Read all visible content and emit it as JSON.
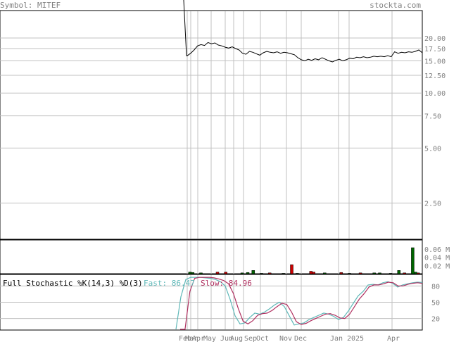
{
  "header": {
    "symbol_label": "Symbol: MITEF",
    "site": "stockta.com"
  },
  "colors": {
    "price_line": "#000000",
    "vol_up": "#006400",
    "vol_down": "#cc0000",
    "fast_line": "#5fb8b8",
    "slow_line": "#b03060",
    "grid": "#c0c0c0",
    "label": "#808080",
    "fast_label": "#5fb8b8",
    "slow_label": "#b03060"
  },
  "chart_data": [
    {
      "type": "line",
      "name": "price",
      "y_scale": "log",
      "ylim": [
        1.6,
        28
      ],
      "y_ticks": [
        "20.00",
        "17.50",
        "15.00",
        "12.50",
        "10.00",
        "7.50",
        "5.00",
        "2.50"
      ],
      "y_tick_values": [
        20,
        17.5,
        15,
        12.5,
        10,
        7.5,
        5,
        2.5
      ],
      "month_labels": [
        "Feb",
        "Mar",
        "Apr",
        "May",
        "Jun",
        "Aug",
        "Sep",
        "Oct",
        "Nov",
        "Dec",
        "Jan",
        "2025",
        "Apr"
      ],
      "values": [
        16.0,
        16.5,
        17.2,
        18.1,
        18.4,
        18.2,
        18.9,
        18.6,
        18.8,
        18.3,
        18.1,
        17.8,
        17.6,
        17.9,
        17.5,
        17.2,
        16.5,
        16.3,
        16.9,
        16.7,
        16.4,
        16.1,
        16.6,
        16.9,
        16.7,
        16.6,
        16.8,
        16.5,
        16.7,
        16.6,
        16.4,
        16.2,
        15.6,
        15.2,
        15.0,
        15.3,
        15.1,
        15.4,
        15.2,
        15.6,
        15.3,
        15.0,
        14.8,
        15.1,
        15.3,
        15.0,
        15.2,
        15.5,
        15.4,
        15.7,
        15.6,
        15.8,
        15.6,
        15.7,
        15.9,
        15.8,
        15.9,
        15.8,
        16.0,
        15.8,
        16.8,
        16.5,
        16.7,
        16.6,
        16.8,
        16.7,
        16.9,
        17.2,
        16.6
      ]
    },
    {
      "type": "bar",
      "name": "volume",
      "unit": "M",
      "ylim": [
        0,
        0.08
      ],
      "y_ticks": [
        "0.06 M",
        "0.04 M",
        "0.02 M"
      ],
      "y_tick_values": [
        0.06,
        0.04,
        0.02
      ],
      "bars": [
        {
          "i": 1,
          "v": 0.004,
          "up": true
        },
        {
          "i": 2,
          "v": 0.003,
          "up": true
        },
        {
          "i": 5,
          "v": 0.002,
          "up": true
        },
        {
          "i": 11,
          "v": 0.004,
          "up": false
        },
        {
          "i": 14,
          "v": 0.004,
          "up": false
        },
        {
          "i": 20,
          "v": 0.002,
          "up": true
        },
        {
          "i": 22,
          "v": 0.003,
          "up": true
        },
        {
          "i": 24,
          "v": 0.008,
          "up": true
        },
        {
          "i": 27,
          "v": 0.001,
          "up": true
        },
        {
          "i": 30,
          "v": 0.002,
          "up": false
        },
        {
          "i": 35,
          "v": 0.001,
          "up": true
        },
        {
          "i": 38,
          "v": 0.022,
          "up": false
        },
        {
          "i": 40,
          "v": 0.001,
          "up": true
        },
        {
          "i": 45,
          "v": 0.006,
          "up": false
        },
        {
          "i": 46,
          "v": 0.004,
          "up": false
        },
        {
          "i": 50,
          "v": 0.002,
          "up": true
        },
        {
          "i": 56,
          "v": 0.003,
          "up": false
        },
        {
          "i": 59,
          "v": 0.001,
          "up": true
        },
        {
          "i": 63,
          "v": 0.002,
          "up": false
        },
        {
          "i": 68,
          "v": 0.002,
          "up": true
        },
        {
          "i": 70,
          "v": 0.002,
          "up": true
        },
        {
          "i": 74,
          "v": 0.001,
          "up": true
        },
        {
          "i": 77,
          "v": 0.008,
          "up": true
        },
        {
          "i": 79,
          "v": 0.002,
          "up": false
        },
        {
          "i": 82,
          "v": 0.063,
          "up": true
        },
        {
          "i": 83,
          "v": 0.004,
          "up": true
        },
        {
          "i": 84,
          "v": 0.002,
          "up": false
        }
      ]
    },
    {
      "type": "line",
      "name": "stochastic",
      "title": "Full Stochastic %K(14,3) %D(3)",
      "fast_label": "Fast: 86.47",
      "slow_label": "Slow: 84.96",
      "ylim": [
        0,
        100
      ],
      "y_ticks": [
        "80",
        "50",
        "20"
      ],
      "y_tick_values": [
        80,
        50,
        20
      ],
      "fast": [
        0,
        60,
        92,
        96,
        96,
        96,
        95,
        94,
        92,
        88,
        80,
        55,
        25,
        10,
        12,
        22,
        30,
        28,
        32,
        38,
        45,
        50,
        42,
        25,
        8,
        10,
        12,
        18,
        22,
        26,
        30,
        28,
        24,
        18,
        22,
        34,
        48,
        62,
        70,
        82,
        83,
        82,
        86,
        88,
        85,
        78,
        82,
        84,
        86,
        87,
        86.47
      ],
      "slow": [
        0,
        0,
        70,
        94,
        96,
        96,
        96,
        95,
        93,
        90,
        84,
        66,
        38,
        15,
        10,
        16,
        26,
        29,
        30,
        35,
        42,
        48,
        46,
        32,
        14,
        9,
        11,
        16,
        20,
        24,
        28,
        29,
        26,
        21,
        20,
        28,
        42,
        56,
        66,
        78,
        82,
        82,
        84,
        87,
        86,
        80,
        80,
        83,
        85,
        86,
        84.96
      ]
    }
  ]
}
